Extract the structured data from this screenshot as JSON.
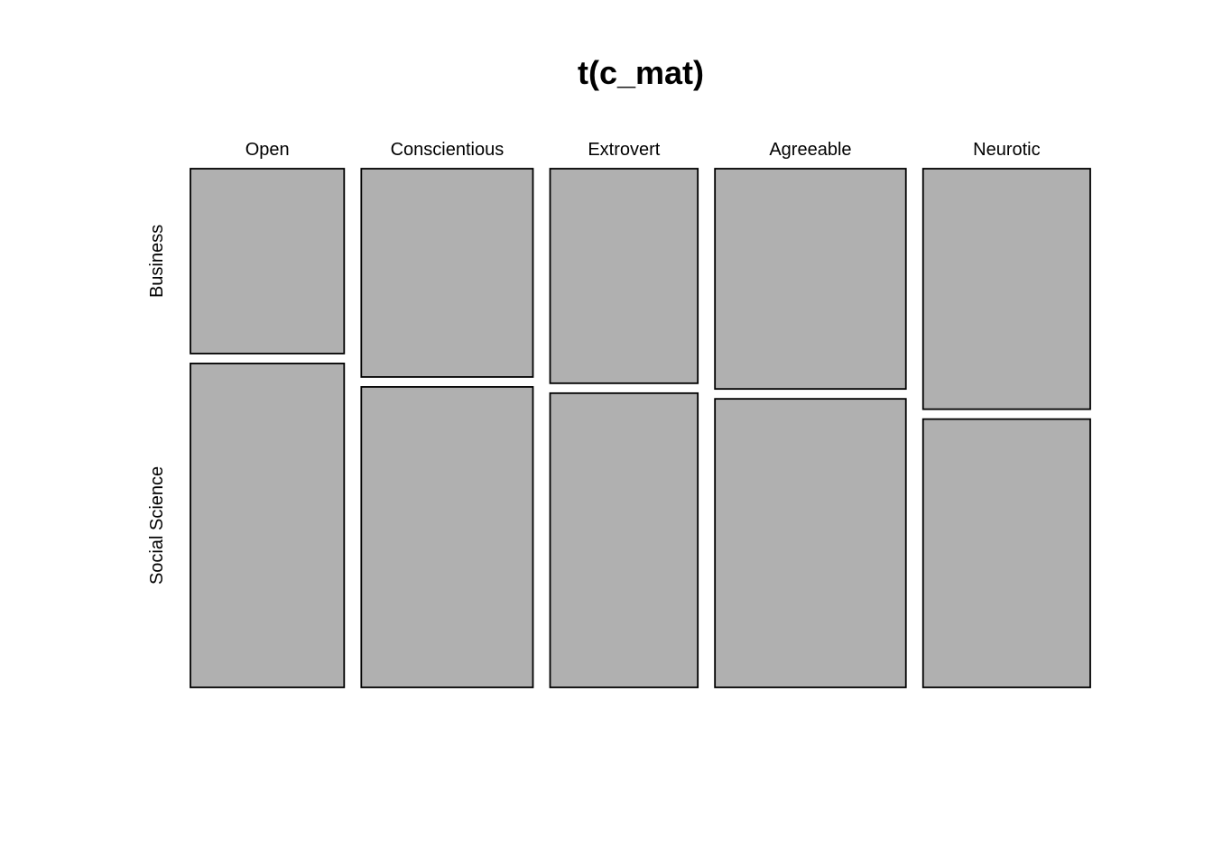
{
  "chart_data": {
    "type": "mosaic",
    "title": "t(c_mat)",
    "columns": [
      "Open",
      "Conscientious",
      "Extrovert",
      "Agreeable",
      "Neurotic"
    ],
    "rows": [
      "Business",
      "Social Science"
    ],
    "column_share": [
      0.1664,
      0.1858,
      0.1599,
      0.2067,
      0.181
    ],
    "row_share_within_column": [
      [
        0.3633,
        0.6367
      ],
      [
        0.4094,
        0.5906
      ],
      [
        0.4217,
        0.5783
      ],
      [
        0.4329,
        0.5671
      ],
      [
        0.4727,
        0.5273
      ]
    ],
    "fill_color": "#b0b0b0",
    "border_color": "#000000"
  }
}
